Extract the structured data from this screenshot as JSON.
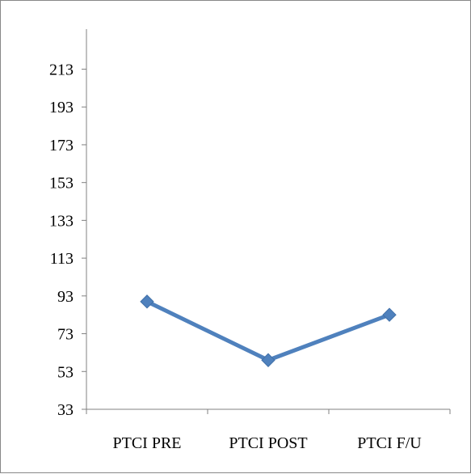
{
  "chart_data": {
    "type": "line",
    "title": "",
    "xlabel": "",
    "ylabel": "",
    "categories": [
      "PTCI PRE",
      "PTCI POST",
      "PTCI F/U"
    ],
    "series": [
      {
        "values": [
          90,
          59,
          83
        ]
      }
    ],
    "ylim": [
      33,
      233
    ],
    "yticks": [
      33,
      53,
      73,
      93,
      113,
      133,
      153,
      173,
      193,
      213
    ],
    "ytick_labels": [
      "33",
      "53",
      "73",
      "93",
      "113",
      "133",
      "153",
      "173",
      "193",
      "213"
    ],
    "grid": false,
    "legend": "none",
    "colors": {
      "line": "#4f81bd",
      "marker": "#4f81bd",
      "axis": "#808080"
    },
    "marker": "diamond"
  }
}
